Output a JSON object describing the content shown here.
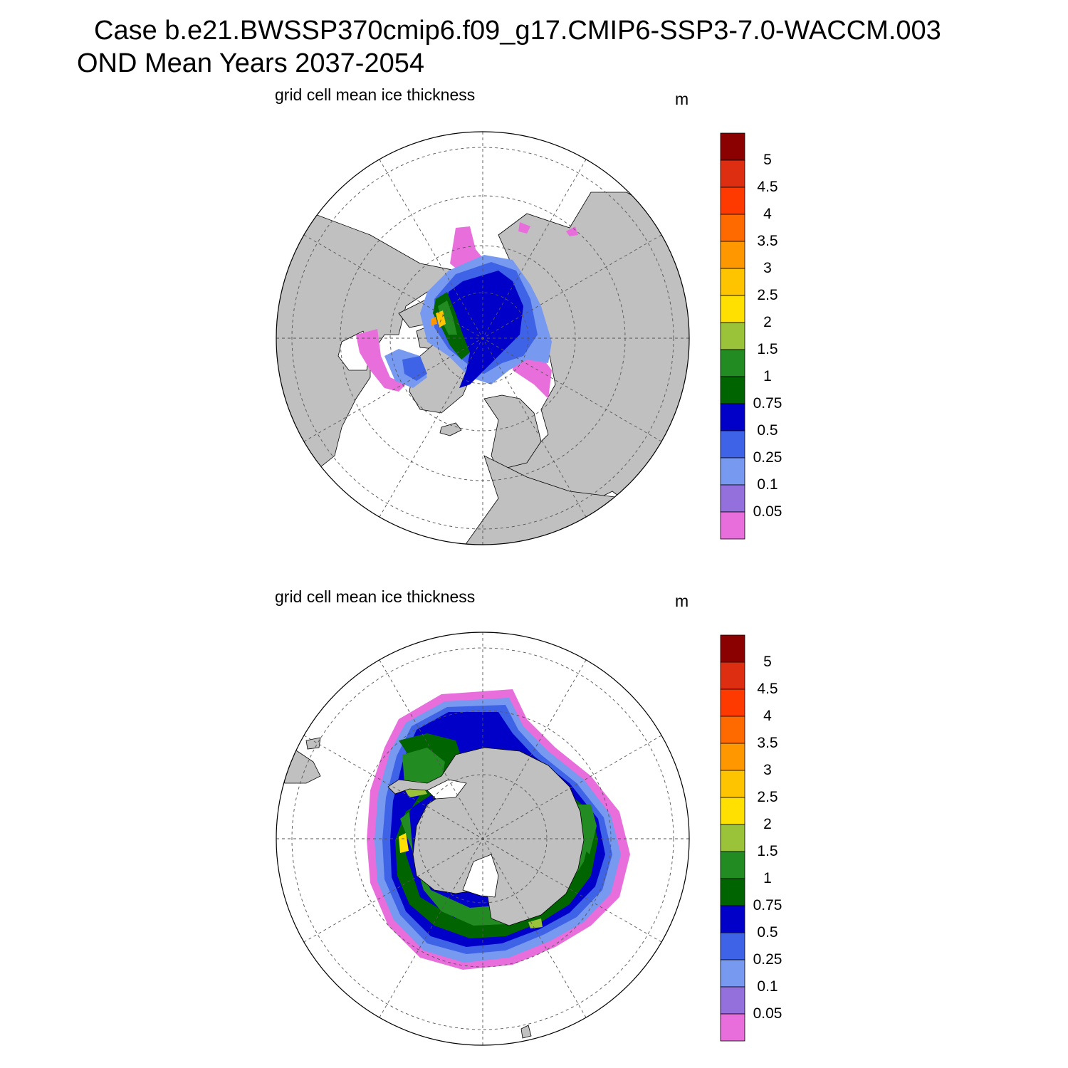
{
  "header": {
    "case_line": "Case b.e21.BWSSP370cmip6.f09_g17.CMIP6-SSP3-7.0-WACCM.003",
    "period_line": "OND Mean   Years 2037-2054"
  },
  "panels": [
    {
      "id": "north",
      "hemisphere": "Northern Hemisphere (Arctic)",
      "label": "grid cell mean ice thickness",
      "units": "m"
    },
    {
      "id": "south",
      "hemisphere": "Southern Hemisphere (Antarctic)",
      "label": "grid cell mean ice thickness",
      "units": "m"
    }
  ],
  "colorbar": {
    "ticks": [
      "5",
      "4.5",
      "4",
      "3.5",
      "3",
      "2.5",
      "2",
      "1.5",
      "1",
      "0.75",
      "0.5",
      "0.25",
      "0.1",
      "0.05"
    ],
    "colors_top_to_bottom": [
      "#8b0000",
      "#dd2e12",
      "#ff3a00",
      "#ff6a00",
      "#ff9800",
      "#ffc400",
      "#ffe000",
      "#9bc33a",
      "#228b22",
      "#006400",
      "#0000c8",
      "#3f63e6",
      "#7799f0",
      "#9370db",
      "#e86edc"
    ]
  },
  "map_style": {
    "land_color": "#c0c0c0",
    "ocean_color": "#ffffff",
    "projection": "polar stereographic",
    "graticule": "dashed"
  }
}
